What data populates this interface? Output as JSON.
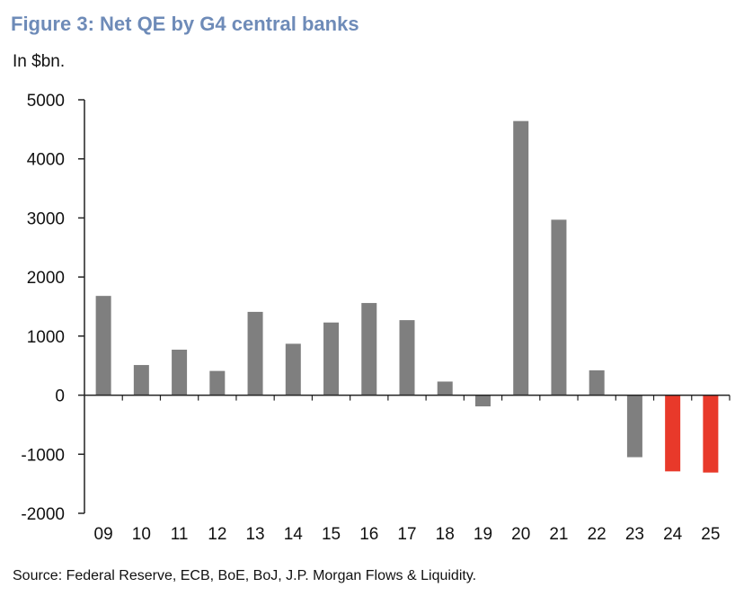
{
  "title": "Figure 3: Net QE by G4 central banks",
  "unit_label": "In $bn.",
  "source": "Source: Federal Reserve, ECB, BoE, BoJ, J.P. Morgan Flows & Liquidity.",
  "chart_data": {
    "type": "bar",
    "categories": [
      "09",
      "10",
      "11",
      "12",
      "13",
      "14",
      "15",
      "16",
      "17",
      "18",
      "19",
      "20",
      "21",
      "22",
      "23",
      "24",
      "25"
    ],
    "values": [
      1680,
      510,
      770,
      410,
      1410,
      870,
      1230,
      1560,
      1270,
      230,
      -190,
      4640,
      2970,
      420,
      -1050,
      -1290,
      -1310
    ],
    "bar_colors": [
      "#7f7f7f",
      "#7f7f7f",
      "#7f7f7f",
      "#7f7f7f",
      "#7f7f7f",
      "#7f7f7f",
      "#7f7f7f",
      "#7f7f7f",
      "#7f7f7f",
      "#7f7f7f",
      "#7f7f7f",
      "#7f7f7f",
      "#7f7f7f",
      "#7f7f7f",
      "#7f7f7f",
      "#e8392a",
      "#e8392a"
    ],
    "ylim": [
      -2000,
      5000
    ],
    "yticks": [
      5000,
      4000,
      3000,
      2000,
      1000,
      0,
      -1000,
      -2000
    ],
    "grid": false
  }
}
